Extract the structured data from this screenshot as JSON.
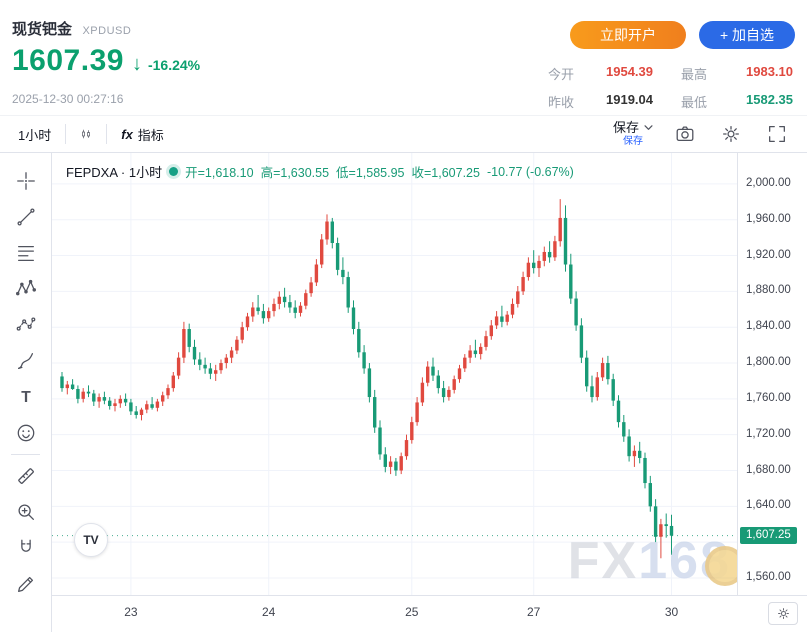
{
  "header": {
    "title": "现货钯金",
    "symbol": "XPDUSD",
    "price": "1607.39",
    "arrow": "↓",
    "change": "-16.24%",
    "timestamp": "2025-12-30 00:27:16",
    "open_account": "立即开户",
    "add_watchlist": "+ 加自选",
    "stats": [
      {
        "label": "今开",
        "value": "1954.39",
        "color": "#e0493f"
      },
      {
        "label": "最高",
        "value": "1983.10",
        "color": "#e0493f"
      },
      {
        "label": "昨收",
        "value": "1919.04",
        "color": "#333333"
      },
      {
        "label": "最低",
        "value": "1582.35",
        "color": "#189a76"
      }
    ]
  },
  "toolbar": {
    "interval": "1小时",
    "fx_label": "fx",
    "indicators": "指标",
    "save": "保存",
    "save_sub": "保存"
  },
  "chart": {
    "legend_title": "FEPDXA · 1小时",
    "ohlc_text": {
      "o": "开=1,618.10",
      "h": "高=1,630.55",
      "l": "低=1,585.95",
      "c": "收=1,607.25",
      "chg": "-10.77 (-0.67%)"
    }
  },
  "watermark": {
    "fx": "FX",
    "num": "168"
  },
  "chart_data": {
    "type": "candlestick",
    "title": "FEPDXA 1小时 现货钯金 XPDUSD",
    "up_color": "#e0493f",
    "down_color": "#189a76",
    "grid": true,
    "legend_position": "top-left",
    "y_range": {
      "top_price": 2034.5,
      "bottom_price": 1541.0
    },
    "y_ticks": [
      {
        "value": 2000,
        "label": "2,000.00"
      },
      {
        "value": 1960,
        "label": "1,960.00"
      },
      {
        "value": 1920,
        "label": "1,920.00"
      },
      {
        "value": 1880,
        "label": "1,880.00"
      },
      {
        "value": 1840,
        "label": "1,840.00"
      },
      {
        "value": 1800,
        "label": "1,800.00"
      },
      {
        "value": 1760,
        "label": "1,760.00"
      },
      {
        "value": 1720,
        "label": "1,720.00"
      },
      {
        "value": 1680,
        "label": "1,680.00"
      },
      {
        "value": 1640,
        "label": "1,640.00"
      },
      {
        "value": 1600,
        "label": "1,600.00",
        "hidden": true
      },
      {
        "value": 1560,
        "label": "1,560.00"
      }
    ],
    "x_ticks": [
      {
        "index": 13,
        "label": "23"
      },
      {
        "index": 39,
        "label": "24"
      },
      {
        "index": 66,
        "label": "25"
      },
      {
        "index": 89,
        "label": "27"
      },
      {
        "index": 115,
        "label": "30"
      }
    ],
    "last_price": 1607.25,
    "last_price_label": "1,607.25",
    "ohlc_last": {
      "open": 1618.1,
      "high": 1630.55,
      "low": 1585.95,
      "close": 1607.25,
      "change": -10.77,
      "change_pct": -0.67
    },
    "candles": [
      [
        1785,
        1790,
        1768,
        1772
      ],
      [
        1772,
        1780,
        1765,
        1776
      ],
      [
        1776,
        1782,
        1770,
        1771
      ],
      [
        1771,
        1775,
        1755,
        1760
      ],
      [
        1760,
        1772,
        1756,
        1768
      ],
      [
        1768,
        1775,
        1762,
        1766
      ],
      [
        1766,
        1770,
        1752,
        1757
      ],
      [
        1757,
        1766,
        1750,
        1762
      ],
      [
        1762,
        1768,
        1754,
        1758
      ],
      [
        1758,
        1762,
        1748,
        1752
      ],
      [
        1752,
        1760,
        1746,
        1755
      ],
      [
        1755,
        1764,
        1750,
        1760
      ],
      [
        1760,
        1766,
        1752,
        1756
      ],
      [
        1756,
        1760,
        1742,
        1746
      ],
      [
        1746,
        1752,
        1738,
        1742
      ],
      [
        1742,
        1750,
        1736,
        1748
      ],
      [
        1748,
        1758,
        1744,
        1754
      ],
      [
        1754,
        1762,
        1748,
        1750
      ],
      [
        1750,
        1760,
        1746,
        1757
      ],
      [
        1757,
        1768,
        1752,
        1764
      ],
      [
        1764,
        1776,
        1760,
        1772
      ],
      [
        1772,
        1790,
        1768,
        1786
      ],
      [
        1786,
        1812,
        1782,
        1806
      ],
      [
        1806,
        1846,
        1800,
        1838
      ],
      [
        1838,
        1844,
        1812,
        1818
      ],
      [
        1818,
        1826,
        1798,
        1804
      ],
      [
        1804,
        1812,
        1792,
        1798
      ],
      [
        1798,
        1806,
        1788,
        1794
      ],
      [
        1794,
        1800,
        1782,
        1788
      ],
      [
        1788,
        1798,
        1780,
        1792
      ],
      [
        1792,
        1804,
        1788,
        1800
      ],
      [
        1800,
        1810,
        1794,
        1806
      ],
      [
        1806,
        1818,
        1800,
        1814
      ],
      [
        1814,
        1830,
        1810,
        1826
      ],
      [
        1826,
        1846,
        1822,
        1840
      ],
      [
        1840,
        1856,
        1836,
        1852
      ],
      [
        1852,
        1868,
        1846,
        1862
      ],
      [
        1862,
        1876,
        1854,
        1858
      ],
      [
        1858,
        1866,
        1844,
        1850
      ],
      [
        1850,
        1862,
        1846,
        1858
      ],
      [
        1858,
        1872,
        1852,
        1866
      ],
      [
        1866,
        1880,
        1860,
        1874
      ],
      [
        1874,
        1884,
        1862,
        1868
      ],
      [
        1868,
        1876,
        1856,
        1862
      ],
      [
        1862,
        1870,
        1850,
        1856
      ],
      [
        1856,
        1868,
        1852,
        1864
      ],
      [
        1864,
        1882,
        1860,
        1878
      ],
      [
        1878,
        1896,
        1874,
        1890
      ],
      [
        1890,
        1916,
        1886,
        1910
      ],
      [
        1910,
        1944,
        1906,
        1938
      ],
      [
        1938,
        1966,
        1932,
        1958
      ],
      [
        1958,
        1962,
        1928,
        1934
      ],
      [
        1934,
        1940,
        1898,
        1904
      ],
      [
        1904,
        1918,
        1888,
        1896
      ],
      [
        1896,
        1902,
        1856,
        1862
      ],
      [
        1862,
        1870,
        1832,
        1838
      ],
      [
        1838,
        1846,
        1806,
        1812
      ],
      [
        1812,
        1820,
        1788,
        1794
      ],
      [
        1794,
        1800,
        1756,
        1762
      ],
      [
        1762,
        1770,
        1722,
        1728
      ],
      [
        1728,
        1736,
        1692,
        1698
      ],
      [
        1698,
        1706,
        1678,
        1684
      ],
      [
        1684,
        1696,
        1676,
        1690
      ],
      [
        1690,
        1694,
        1674,
        1680
      ],
      [
        1680,
        1700,
        1676,
        1696
      ],
      [
        1696,
        1720,
        1692,
        1714
      ],
      [
        1714,
        1740,
        1710,
        1734
      ],
      [
        1734,
        1762,
        1730,
        1756
      ],
      [
        1756,
        1784,
        1752,
        1778
      ],
      [
        1778,
        1802,
        1774,
        1796
      ],
      [
        1796,
        1806,
        1780,
        1786
      ],
      [
        1786,
        1792,
        1766,
        1772
      ],
      [
        1772,
        1780,
        1756,
        1762
      ],
      [
        1762,
        1774,
        1758,
        1770
      ],
      [
        1770,
        1786,
        1766,
        1782
      ],
      [
        1782,
        1798,
        1778,
        1794
      ],
      [
        1794,
        1810,
        1790,
        1806
      ],
      [
        1806,
        1820,
        1800,
        1814
      ],
      [
        1814,
        1826,
        1806,
        1810
      ],
      [
        1810,
        1822,
        1804,
        1818
      ],
      [
        1818,
        1836,
        1814,
        1830
      ],
      [
        1830,
        1848,
        1826,
        1842
      ],
      [
        1842,
        1858,
        1838,
        1852
      ],
      [
        1852,
        1864,
        1840,
        1846
      ],
      [
        1846,
        1858,
        1842,
        1854
      ],
      [
        1854,
        1872,
        1850,
        1866
      ],
      [
        1866,
        1886,
        1862,
        1880
      ],
      [
        1880,
        1902,
        1876,
        1896
      ],
      [
        1896,
        1918,
        1892,
        1912
      ],
      [
        1912,
        1926,
        1900,
        1906
      ],
      [
        1906,
        1920,
        1896,
        1914
      ],
      [
        1914,
        1930,
        1908,
        1924
      ],
      [
        1924,
        1936,
        1912,
        1918
      ],
      [
        1918,
        1942,
        1914,
        1936
      ],
      [
        1936,
        1983,
        1930,
        1962
      ],
      [
        1962,
        1976,
        1902,
        1910
      ],
      [
        1910,
        1922,
        1866,
        1872
      ],
      [
        1872,
        1880,
        1836,
        1842
      ],
      [
        1842,
        1850,
        1800,
        1806
      ],
      [
        1806,
        1814,
        1768,
        1774
      ],
      [
        1774,
        1786,
        1756,
        1762
      ],
      [
        1762,
        1790,
        1758,
        1784
      ],
      [
        1784,
        1806,
        1780,
        1800
      ],
      [
        1800,
        1808,
        1776,
        1782
      ],
      [
        1782,
        1788,
        1752,
        1758
      ],
      [
        1758,
        1764,
        1728,
        1734
      ],
      [
        1734,
        1742,
        1712,
        1718
      ],
      [
        1718,
        1726,
        1690,
        1696
      ],
      [
        1696,
        1708,
        1684,
        1702
      ],
      [
        1702,
        1712,
        1688,
        1694
      ],
      [
        1694,
        1700,
        1660,
        1666
      ],
      [
        1666,
        1674,
        1634,
        1640
      ],
      [
        1640,
        1648,
        1600,
        1606
      ],
      [
        1606,
        1626,
        1582,
        1620
      ],
      [
        1620,
        1632,
        1605,
        1618
      ],
      [
        1618.1,
        1630.55,
        1585.95,
        1607.25
      ]
    ]
  }
}
